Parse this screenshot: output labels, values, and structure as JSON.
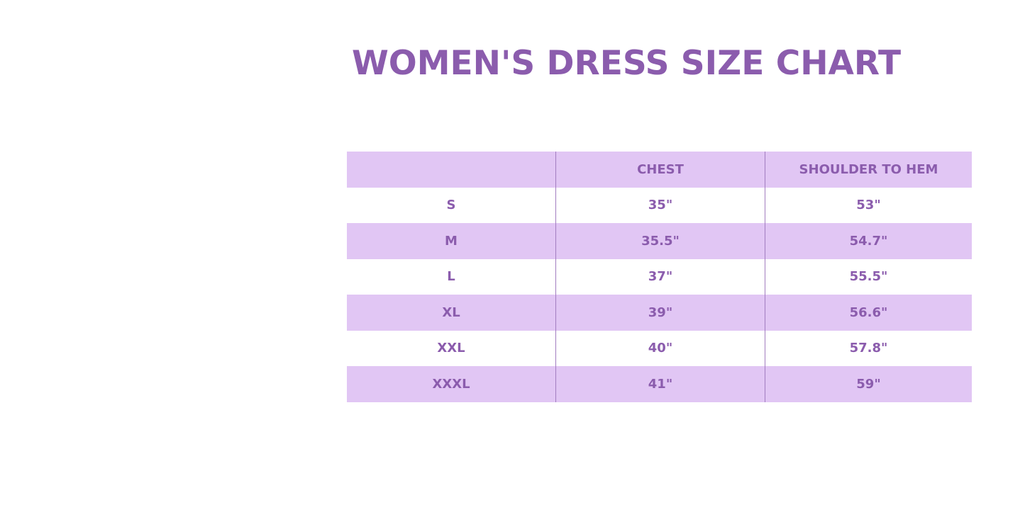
{
  "title": "WOMEN'S DRESS SIZE CHART",
  "colors": {
    "accent": "#8b5cad",
    "row_fill": "#e1c6f4"
  },
  "table": {
    "headers": [
      "",
      "CHEST",
      "SHOULDER TO HEM"
    ],
    "rows": [
      [
        "S",
        "35\"",
        "53\""
      ],
      [
        "M",
        "35.5\"",
        "54.7\""
      ],
      [
        "L",
        "37\"",
        "55.5\""
      ],
      [
        "XL",
        "39\"",
        "56.6\""
      ],
      [
        "XXL",
        "40\"",
        "57.8\""
      ],
      [
        "XXXL",
        "41\"",
        "59\""
      ]
    ]
  }
}
